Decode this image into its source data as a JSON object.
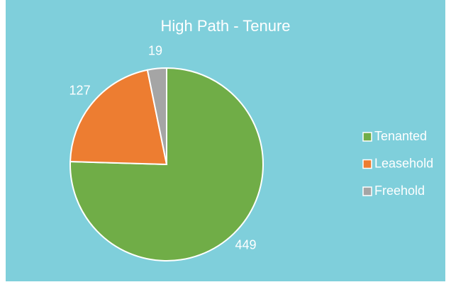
{
  "chart_data": {
    "type": "pie",
    "title": "High Path - Tenure",
    "categories": [
      "Tenanted",
      "Leasehold",
      "Freehold"
    ],
    "values": [
      449,
      127,
      19
    ],
    "colors": [
      "#70ad47",
      "#ed7d31",
      "#a5a5a5"
    ],
    "legend": "right"
  }
}
